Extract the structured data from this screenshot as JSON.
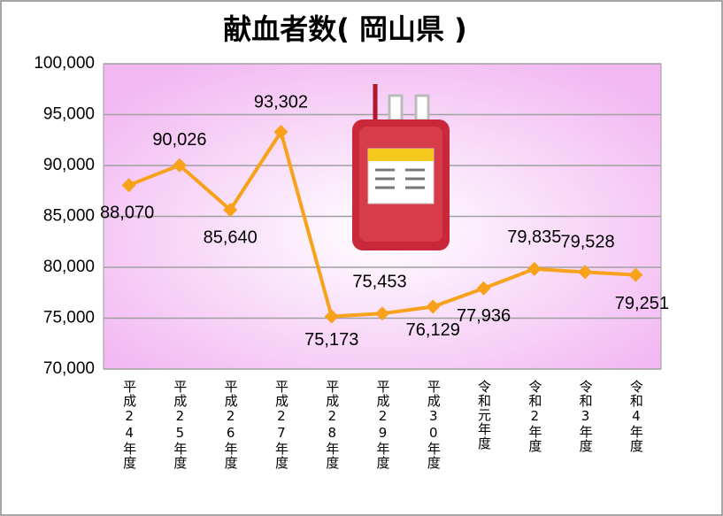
{
  "chart_data": {
    "type": "line",
    "title": "献血者数( 岡山県 )",
    "categories": [
      "平成24年度",
      "平成25年度",
      "平成26年度",
      "平成27年度",
      "平成28年度",
      "平成29年度",
      "平成30年度",
      "令和元年度",
      "令和2年度",
      "令和3年度",
      "令和4年度"
    ],
    "values": [
      88070,
      90026,
      85640,
      93302,
      75173,
      75453,
      76129,
      77936,
      79835,
      79528,
      79251
    ],
    "value_labels": [
      "88,070",
      "90,026",
      "85,640",
      "93,302",
      "75,173",
      "75,453",
      "76,129",
      "77,936",
      "79,835",
      "79,528",
      "79,251"
    ],
    "color": "#f8a21c",
    "ylim": [
      70000,
      100000
    ],
    "yticks": [
      {
        "value": 70000,
        "label": "70,000"
      },
      {
        "value": 75000,
        "label": "75,000"
      },
      {
        "value": 80000,
        "label": "80,000"
      },
      {
        "value": 85000,
        "label": "85,000"
      },
      {
        "value": 90000,
        "label": "90,000"
      },
      {
        "value": 95000,
        "label": "95,000"
      },
      {
        "value": 100000,
        "label": "100,000"
      }
    ],
    "grid": true
  }
}
